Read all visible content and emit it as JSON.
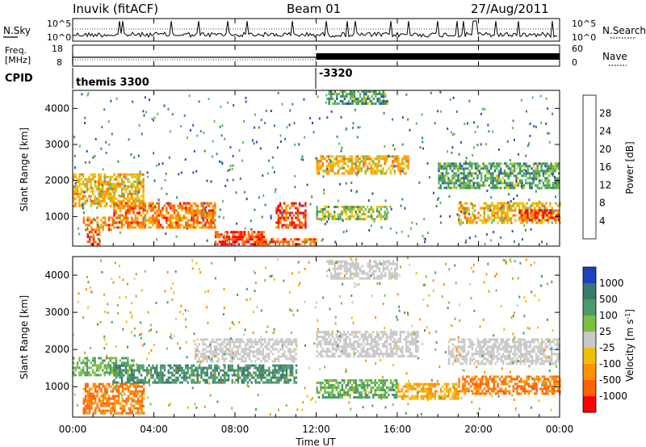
{
  "header": {
    "station": "Inuvik (fitACF)",
    "beam": "Beam 01",
    "date": "27/Aug/2011"
  },
  "top_panels": {
    "nsky": {
      "left_label": "N.Sky",
      "right_label": "N.Search",
      "left_ticks": [
        "10^5",
        "10^0"
      ],
      "right_ticks": [
        "10^5",
        "10^0"
      ]
    },
    "freq": {
      "left_label_line1": "Freq.",
      "left_label_line2": "[MHz]",
      "right_label": "Nave",
      "left_ticks": [
        "18",
        "8"
      ],
      "right_ticks": [
        "60",
        "0"
      ]
    },
    "cpid": {
      "label": "CPID",
      "entries": [
        "themis 3300",
        "-3320"
      ],
      "change_hours": [
        12.0
      ]
    }
  },
  "chart_data": [
    {
      "type": "heatmap",
      "name": "power",
      "title": "",
      "xlabel": "Time UT",
      "ylabel": "Slant Range [km]",
      "xlim": [
        0,
        24
      ],
      "ylim": [
        180,
        4500
      ],
      "x_ticks": [
        "00:00",
        "04:00",
        "08:00",
        "12:00",
        "16:00",
        "20:00",
        "00:00"
      ],
      "y_ticks": [
        "1000",
        "2000",
        "3000",
        "4000"
      ],
      "colorbar": {
        "label": "Power [dB]",
        "ticks": [
          "4",
          "8",
          "12",
          "16",
          "20",
          "24",
          "28"
        ],
        "colors": [
          "#0000ff",
          "#2f4fb0",
          "#3a8f5a",
          "#5fb860",
          "#e8c400",
          "#ff9a00",
          "#ff6000",
          "#ff0000"
        ]
      },
      "bands": [
        {
          "t0": 0.0,
          "t1": 3.5,
          "r0": 1300,
          "r1": 2200,
          "level": 20
        },
        {
          "t0": 0.5,
          "t1": 2.0,
          "r0": 600,
          "r1": 1000,
          "level": 24
        },
        {
          "t0": 0.7,
          "t1": 1.3,
          "r0": 250,
          "r1": 600,
          "level": 28
        },
        {
          "t0": 2.0,
          "t1": 7.0,
          "r0": 700,
          "r1": 1400,
          "level": 24
        },
        {
          "t0": 7.0,
          "t1": 9.5,
          "r0": 200,
          "r1": 600,
          "level": 28
        },
        {
          "t0": 10.0,
          "t1": 11.5,
          "r0": 700,
          "r1": 1400,
          "level": 28
        },
        {
          "t0": 9.0,
          "t1": 12.0,
          "r0": 200,
          "r1": 400,
          "level": 26
        },
        {
          "t0": 12.0,
          "t1": 16.5,
          "r0": 2200,
          "r1": 2700,
          "level": 20
        },
        {
          "t0": 12.0,
          "t1": 15.5,
          "r0": 900,
          "r1": 1300,
          "level": 16
        },
        {
          "t0": 12.5,
          "t1": 15.5,
          "r0": 4100,
          "r1": 4500,
          "level": 12
        },
        {
          "t0": 18.0,
          "t1": 24.0,
          "r0": 1800,
          "r1": 2500,
          "level": 12
        },
        {
          "t0": 19.0,
          "t1": 24.0,
          "r0": 800,
          "r1": 1400,
          "level": 20
        },
        {
          "t0": 22.0,
          "t1": 24.0,
          "r0": 900,
          "r1": 1200,
          "level": 28
        }
      ]
    },
    {
      "type": "heatmap",
      "name": "velocity",
      "title": "",
      "xlabel": "Time UT",
      "ylabel": "Slant Range [km]",
      "xlim": [
        0,
        24
      ],
      "ylim": [
        180,
        4500
      ],
      "x_ticks": [
        "00:00",
        "04:00",
        "08:00",
        "12:00",
        "16:00",
        "20:00",
        "00:00"
      ],
      "y_ticks": [
        "1000",
        "2000",
        "3000",
        "4000"
      ],
      "colorbar": {
        "label": "Velocity [m s^-1]",
        "ticks": [
          "1000",
          "500",
          "100",
          "25",
          "-25",
          "-100",
          "-500",
          "-1000"
        ],
        "colors": [
          "#2040c0",
          "#3a7a6a",
          "#4a9a6a",
          "#7ac040",
          "#c8c8c8",
          "#f0c000",
          "#ff9000",
          "#ff6000",
          "#ff0000"
        ]
      },
      "bands": [
        {
          "t0": 0.0,
          "t1": 3.0,
          "r0": 1300,
          "r1": 1800,
          "level": 100
        },
        {
          "t0": 0.5,
          "t1": 3.5,
          "r0": 300,
          "r1": 1100,
          "level": -500
        },
        {
          "t0": 2.0,
          "t1": 11.0,
          "r0": 1100,
          "r1": 1600,
          "level": 500
        },
        {
          "t0": 6.0,
          "t1": 11.0,
          "r0": 1700,
          "r1": 2300,
          "level": 0
        },
        {
          "t0": 12.0,
          "t1": 17.0,
          "r0": 1800,
          "r1": 2500,
          "level": 0
        },
        {
          "t0": 12.0,
          "t1": 16.0,
          "r0": 700,
          "r1": 1200,
          "level": 100
        },
        {
          "t0": 16.0,
          "t1": 19.0,
          "r0": 700,
          "r1": 1100,
          "level": -100
        },
        {
          "t0": 19.0,
          "t1": 24.0,
          "r0": 800,
          "r1": 1300,
          "level": -500
        },
        {
          "t0": 18.5,
          "t1": 24.0,
          "r0": 1600,
          "r1": 2300,
          "level": 0
        },
        {
          "t0": 12.5,
          "t1": 16.0,
          "r0": 3900,
          "r1": 4400,
          "level": 0
        }
      ]
    }
  ]
}
